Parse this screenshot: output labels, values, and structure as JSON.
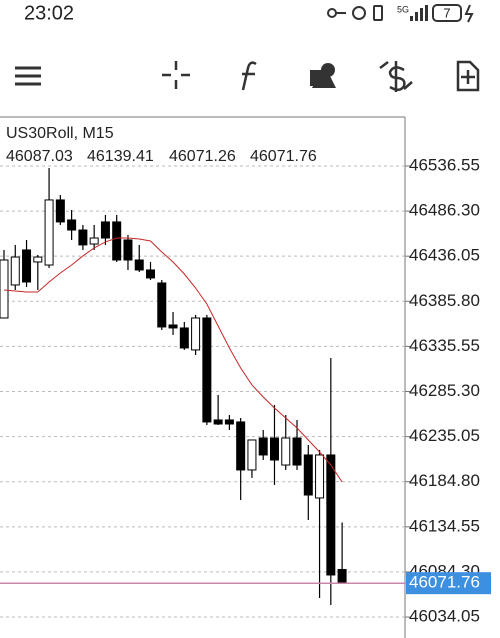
{
  "status": {
    "time": "23:02",
    "network": "5G",
    "battery": "7"
  },
  "chart_data": {
    "type": "candlestick",
    "title": "US30Roll, M15",
    "candles": [
      {
        "open": 46367.2,
        "high": 46443.0,
        "low": 46367.2,
        "close": 46431.8
      },
      {
        "open": 46404.0,
        "high": 46448.6,
        "low": 46398.4,
        "close": 46435.1
      },
      {
        "open": 46443.0,
        "high": 46454.1,
        "low": 46401.7,
        "close": 46407.3
      },
      {
        "open": 46429.6,
        "high": 46437.4,
        "low": 46398.4,
        "close": 46435.1
      },
      {
        "open": 46426.2,
        "high": 46534.3,
        "low": 46422.9,
        "close": 46498.7
      },
      {
        "open": 46498.7,
        "high": 46504.2,
        "low": 46470.8,
        "close": 46474.2
      },
      {
        "open": 46476.4,
        "high": 46487.5,
        "low": 46454.1,
        "close": 46465.2
      },
      {
        "open": 46465.2,
        "high": 46470.8,
        "low": 46443.0,
        "close": 46448.6
      },
      {
        "open": 46449.6,
        "high": 46470.8,
        "low": 46443.0,
        "close": 46456.3
      },
      {
        "open": 46474.2,
        "high": 46482.0,
        "low": 46448.6,
        "close": 46456.3
      },
      {
        "open": 46474.2,
        "high": 46482.0,
        "low": 46429.6,
        "close": 46431.8
      },
      {
        "open": 46454.1,
        "high": 46459.7,
        "low": 46420.7,
        "close": 46431.8
      },
      {
        "open": 46431.8,
        "high": 46448.6,
        "low": 46418.4,
        "close": 46420.7
      },
      {
        "open": 46420.7,
        "high": 46429.6,
        "low": 46409.5,
        "close": 46411.8
      },
      {
        "open": 46406.2,
        "high": 46409.5,
        "low": 46353.8,
        "close": 46357.2
      },
      {
        "open": 46359.4,
        "high": 46373.9,
        "low": 46348.3,
        "close": 46356.1
      },
      {
        "open": 46356.1,
        "high": 46362.8,
        "low": 46331.6,
        "close": 46333.8
      },
      {
        "open": 46331.6,
        "high": 46370.6,
        "low": 46326.0,
        "close": 46367.2
      },
      {
        "open": 46367.2,
        "high": 46370.6,
        "low": 46248.0,
        "close": 46251.4
      },
      {
        "open": 46253.6,
        "high": 46281.4,
        "low": 46248.0,
        "close": 46249.1
      },
      {
        "open": 46253.6,
        "high": 46259.1,
        "low": 46242.4,
        "close": 46249.1
      },
      {
        "open": 46251.4,
        "high": 46255.8,
        "low": 46164.4,
        "close": 46197.9
      },
      {
        "open": 46197.9,
        "high": 46231.3,
        "low": 46189.0,
        "close": 46231.3
      },
      {
        "open": 46233.5,
        "high": 46242.4,
        "low": 46209.0,
        "close": 46214.6
      },
      {
        "open": 46233.5,
        "high": 46270.3,
        "low": 46181.2,
        "close": 46209.0
      },
      {
        "open": 46203.4,
        "high": 46259.1,
        "low": 46197.9,
        "close": 46233.5
      },
      {
        "open": 46233.5,
        "high": 46253.6,
        "low": 46197.9,
        "close": 46203.4
      },
      {
        "open": 46214.6,
        "high": 46225.7,
        "low": 46142.2,
        "close": 46170.0
      },
      {
        "open": 46166.7,
        "high": 46220.1,
        "low": 46055.3,
        "close": 46214.6
      },
      {
        "open": 46214.6,
        "high": 46322.6,
        "low": 46047.4,
        "close": 46080.9
      },
      {
        "open": 46087.03,
        "high": 46139.41,
        "low": 46071.26,
        "close": 46071.76
      }
    ],
    "ma": {
      "color": "#c62828",
      "values": [
        46398.4,
        46397.3,
        46396.2,
        46396.2,
        46407.3,
        46417.3,
        46426.2,
        46436.3,
        46445.2,
        46451.9,
        46456.3,
        46456.3,
        46455.2,
        46453.0,
        46440.7,
        46429.6,
        46416.2,
        46400.6,
        46382.8,
        46358.3,
        46333.8,
        46311.5,
        46292.6,
        46279.2,
        46266.9,
        46255.8,
        46244.6,
        46231.3,
        46217.9,
        46203.4,
        46184.5
      ]
    },
    "up_color": "#ffffff",
    "down_color": "#000000",
    "price_line_color": "#c987a8",
    "price_label_color": "#3d8fe0",
    "ylim": [
      46010.7,
      46591.1
    ],
    "yticks": [
      46536.55,
      {
        "value": 46486.3,
        "label": "46486.30"
      },
      46436.05,
      {
        "value": 46385.8,
        "label": "46385.80"
      },
      46335.55,
      {
        "value": 46285.3,
        "label": "46285.30"
      },
      46235.05,
      {
        "value": 46184.8,
        "label": "46184.80"
      },
      46134.55,
      {
        "value": 46084.3,
        "label": "46084.30"
      },
      46034.05
    ],
    "grid": true
  }
}
